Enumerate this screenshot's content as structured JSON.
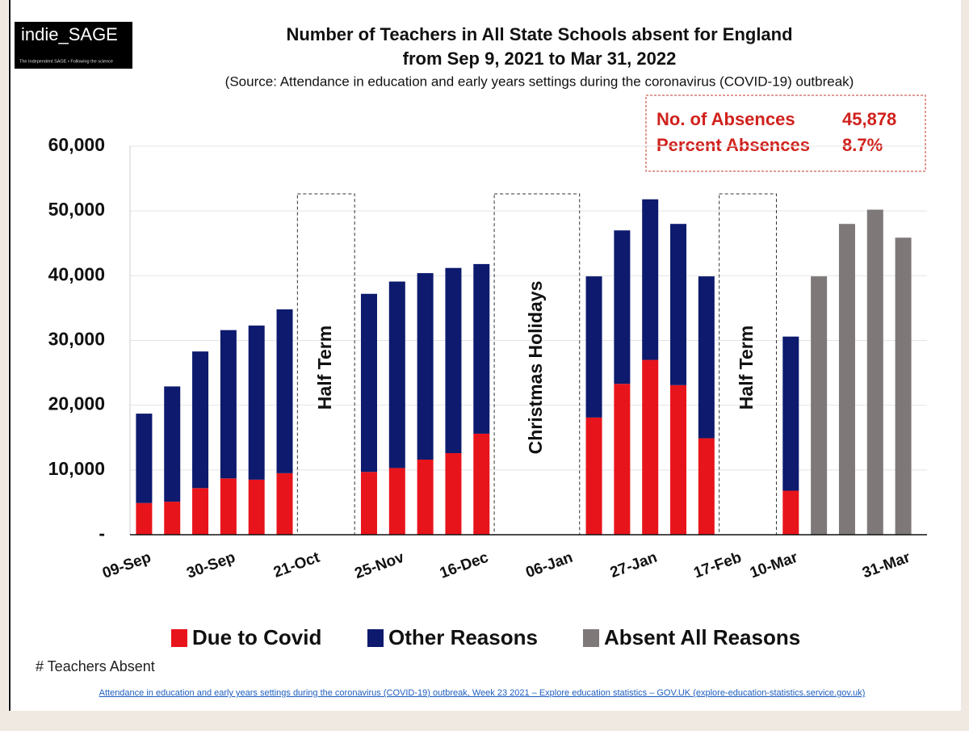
{
  "chart_data": {
    "type": "stacked_bar",
    "logo": "indie_SAGE",
    "logo_tagline": "The Independent SAGE • Following the science",
    "title": "Number of Teachers in All State Schools absent for England",
    "title_line2": "from Sep 9, 2021 to Mar 31, 2022",
    "subtitle": "(Source: Attendance in education and early years settings during the coronavirus (COVID-19) outbreak)",
    "stats": [
      {
        "label": "No. of Absences",
        "value": "45,878"
      },
      {
        "label": "Percent Absences",
        "value": "8.7%"
      }
    ],
    "periods": [
      "Half Term",
      "Christmas Holidays",
      "Half Term"
    ],
    "categories": [
      "09-Sep",
      null,
      null,
      "30-Sep",
      null,
      null,
      "21-Oct",
      null,
      null,
      "25-Nov",
      null,
      null,
      "16-Dec",
      null,
      null,
      "06-Jan",
      null,
      null,
      "27-Jan",
      null,
      null,
      "17-Feb",
      null,
      "10-Mar",
      null,
      null,
      null,
      "31-Mar"
    ],
    "series": [
      {
        "name": "Due to Covid",
        "color": "#e8141b",
        "values": [
          4900,
          5100,
          7200,
          8700,
          8500,
          9500,
          null,
          null,
          9700,
          10300,
          11600,
          12600,
          15600,
          null,
          null,
          null,
          18100,
          23300,
          27000,
          23100,
          14900,
          null,
          null,
          6800,
          null,
          null,
          null,
          null
        ]
      },
      {
        "name": "Other Reasons",
        "color": "#0d1a6e",
        "values": [
          13800,
          17800,
          21100,
          22900,
          23800,
          25300,
          null,
          null,
          27500,
          28800,
          28800,
          28600,
          26200,
          null,
          null,
          null,
          21800,
          23700,
          24800,
          24900,
          25000,
          null,
          null,
          23800,
          null,
          null,
          null,
          null
        ]
      },
      {
        "name": "Absent All Reasons",
        "color": "#7f7878",
        "values": [
          null,
          null,
          null,
          null,
          null,
          null,
          null,
          null,
          null,
          null,
          null,
          null,
          null,
          null,
          null,
          null,
          null,
          null,
          null,
          null,
          null,
          null,
          null,
          null,
          39900,
          48000,
          50200,
          45878
        ]
      }
    ],
    "ylim": [
      0,
      60000
    ],
    "yticks": [
      {
        "value": 0,
        "label": "-"
      },
      {
        "value": 10000,
        "label": "10,000"
      },
      {
        "value": 20000,
        "label": "20,000"
      },
      {
        "value": 30000,
        "label": "30,000"
      },
      {
        "value": 40000,
        "label": "40,000"
      },
      {
        "value": 50000,
        "label": "50,000"
      },
      {
        "value": 60000,
        "label": "60,000"
      }
    ],
    "grid": true,
    "y_label": "# Teachers Absent",
    "source": "Attendance in education and early years settings during the coronavirus (COVID-19) outbreak, Week 23 2021 – Explore education statistics – GOV.UK (explore-education-statistics.service.gov.uk)"
  }
}
